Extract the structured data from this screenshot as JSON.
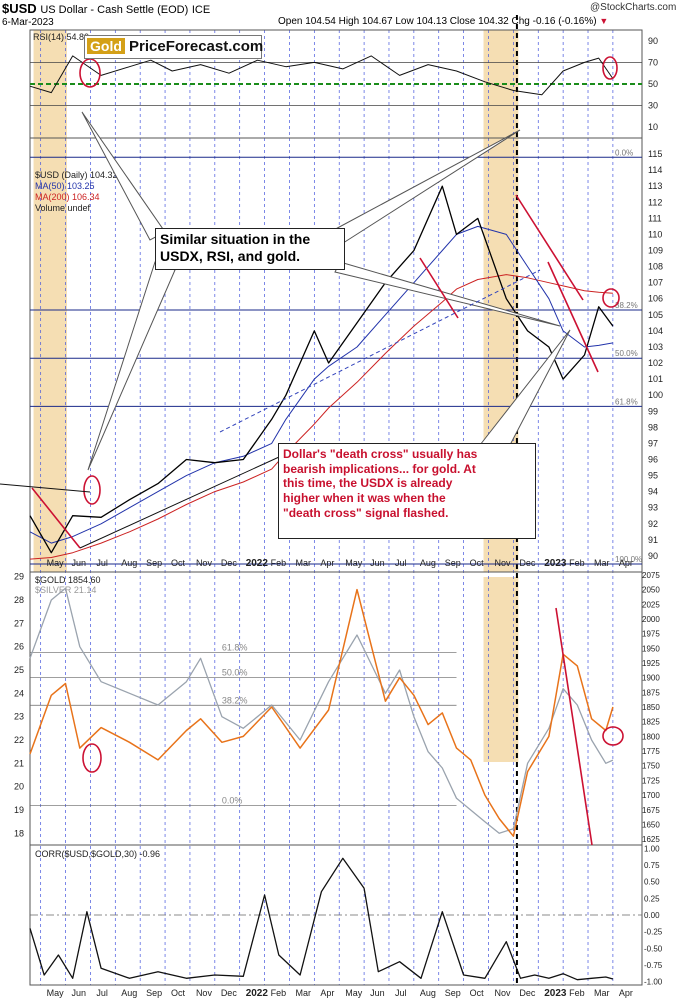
{
  "header": {
    "symbol": "$USD",
    "name": "US Dollar - Cash Settle (EOD)",
    "exchange": "ICE",
    "date": "6-Mar-2023",
    "quote": "Open 104.54  High 104.67  Low 104.13  Close 104.32  Chg -0.16 (-0.16%)",
    "quote_arrow": "▼",
    "credit": "@StockCharts.com"
  },
  "logo": {
    "part1": "Gold",
    "part2": "PriceForecast.com"
  },
  "annotations": {
    "similar": [
      "Similar situation in the",
      "USDX, RSI, and gold."
    ],
    "death_cross": [
      "Dollar's \"death cross\" usually has",
      "bearish implications... for gold. At",
      "this time, the USDX is already",
      "higher when it was when the",
      "\"death cross\" signal flashed."
    ]
  },
  "colors": {
    "gold_series": "#e8731a",
    "silver_series": "#9aa3ae",
    "price": "#000000",
    "ma50": "#2233aa",
    "ma200": "#cc2222",
    "highlight": "#f5deb3",
    "red_annotation": "#cc1133",
    "rsi_mid": "#1a8c1a"
  },
  "chart_data": [
    {
      "type": "line",
      "panel": "rsi",
      "legend": "RSI(14) 54.80",
      "ylim": [
        0,
        100
      ],
      "yticks": [
        10,
        30,
        50,
        70,
        90
      ],
      "ref_lines": [
        30,
        50,
        70
      ],
      "x": [
        0,
        3,
        6,
        10,
        14,
        17,
        20,
        24,
        28,
        32,
        36,
        40,
        44,
        48,
        52,
        56,
        60,
        64,
        68,
        72,
        75,
        78,
        80,
        82
      ],
      "values": [
        48,
        42,
        76,
        58,
        66,
        72,
        62,
        68,
        60,
        72,
        66,
        70,
        64,
        76,
        58,
        68,
        62,
        52,
        44,
        40,
        62,
        70,
        74,
        55
      ]
    },
    {
      "type": "line",
      "panel": "usd",
      "legend": [
        "$USD (Daily) 104.32",
        "MA(50) 103.25",
        "MA(200) 106.34",
        "Volume undef"
      ],
      "ylim": [
        89,
        116
      ],
      "yticks": [
        90,
        91,
        92,
        93,
        94,
        95,
        96,
        97,
        98,
        99,
        100,
        101,
        102,
        103,
        104,
        105,
        106,
        107,
        108,
        109,
        110,
        111,
        112,
        113,
        114,
        115
      ],
      "x": [
        0,
        3,
        6,
        10,
        14,
        18,
        22,
        26,
        30,
        34,
        36,
        40,
        42,
        46,
        50,
        54,
        58,
        60,
        63,
        67,
        70,
        73,
        75,
        78,
        80,
        82
      ],
      "series": [
        {
          "name": "$USD",
          "values": [
            92.5,
            90.2,
            92.5,
            92.4,
            93.5,
            94.5,
            96.0,
            95.8,
            96.0,
            98.5,
            100.0,
            104.0,
            102.0,
            104.5,
            107.0,
            109.0,
            113.0,
            110.0,
            111.0,
            106.0,
            104.0,
            103.0,
            101.0,
            102.5,
            105.5,
            104.3
          ]
        },
        {
          "name": "MA(50)",
          "values": [
            91.5,
            90.8,
            91.2,
            92.0,
            93.0,
            94.0,
            95.0,
            95.8,
            96.2,
            97.0,
            98.5,
            101.0,
            101.8,
            103.0,
            105.0,
            107.0,
            109.0,
            110.0,
            110.5,
            110.0,
            108.0,
            106.0,
            104.0,
            103.0,
            103.1,
            103.25
          ]
        },
        {
          "name": "MA(200)",
          "values": [
            89.8,
            89.9,
            90.2,
            90.8,
            91.5,
            92.3,
            93.2,
            94.0,
            94.6,
            95.4,
            96.4,
            98.2,
            99.2,
            100.8,
            102.6,
            104.3,
            105.8,
            106.6,
            107.2,
            107.5,
            107.3,
            107.0,
            106.8,
            106.5,
            106.4,
            106.34
          ]
        }
      ],
      "fib_levels": [
        {
          "label": "0.0%",
          "value": 114.8
        },
        {
          "label": "38.2%",
          "value": 105.3
        },
        {
          "label": "50.0%",
          "value": 102.3
        },
        {
          "label": "61.8%",
          "value": 99.3
        },
        {
          "label": "100.0%",
          "value": 89.5
        }
      ]
    },
    {
      "type": "line",
      "panel": "gold",
      "legend": [
        "$GOLD 1854.60",
        "$SILVER 21.14"
      ],
      "ylim_gold": [
        1615,
        2080
      ],
      "ylim_silver": [
        17.5,
        29.2
      ],
      "yticks_gold": [
        1625,
        1650,
        1675,
        1700,
        1725,
        1750,
        1775,
        1800,
        1825,
        1850,
        1875,
        1900,
        1925,
        1950,
        1975,
        2000,
        2025,
        2050,
        2075
      ],
      "yticks_silver": [
        18,
        19,
        20,
        21,
        22,
        23,
        24,
        25,
        26,
        27,
        28,
        29
      ],
      "x": [
        0,
        3,
        5,
        7,
        10,
        14,
        18,
        22,
        24,
        27,
        30,
        34,
        38,
        42,
        46,
        50,
        52,
        54,
        56,
        58,
        60,
        62,
        64,
        66,
        68,
        70,
        73,
        75,
        77,
        79,
        81,
        82
      ],
      "series": [
        {
          "name": "$GOLD",
          "values": [
            1770,
            1870,
            1890,
            1780,
            1815,
            1790,
            1760,
            1810,
            1830,
            1790,
            1800,
            1850,
            1780,
            1845,
            2050,
            1860,
            1900,
            1870,
            1820,
            1840,
            1780,
            1760,
            1700,
            1660,
            1630,
            1740,
            1800,
            1940,
            1920,
            1830,
            1810,
            1850
          ]
        },
        {
          "name": "$SILVER",
          "values": [
            25.5,
            28.0,
            28.5,
            26.0,
            24.5,
            24.0,
            23.5,
            24.5,
            25.5,
            23.0,
            22.5,
            23.5,
            22.0,
            24.5,
            26.5,
            24.0,
            25.0,
            23.0,
            21.5,
            20.8,
            19.5,
            19.0,
            18.5,
            18.0,
            18.2,
            21.0,
            22.5,
            24.2,
            23.5,
            22.0,
            21.0,
            21.14
          ]
        }
      ],
      "fib_levels": [
        {
          "label": "61.8%",
          "value": 1943
        },
        {
          "label": "50.0%",
          "value": 1900
        },
        {
          "label": "38.2%",
          "value": 1853
        },
        {
          "label": "0.0%",
          "value": 1682
        }
      ]
    },
    {
      "type": "line",
      "panel": "correlation",
      "legend": "CORR($USD,$GOLD,30) -0.96",
      "ylim": [
        -1.05,
        1.05
      ],
      "yticks": [
        1.0,
        0.75,
        0.5,
        0.25,
        0.0,
        -0.25,
        -0.5,
        -0.75,
        -1.0
      ],
      "x": [
        0,
        2,
        4,
        6,
        8,
        10,
        14,
        18,
        22,
        26,
        30,
        33,
        35,
        38,
        41,
        44,
        47,
        49,
        52,
        55,
        58,
        61,
        64,
        67,
        69,
        71,
        73,
        75,
        77,
        79,
        81,
        82
      ],
      "values": [
        -0.2,
        -0.9,
        -0.6,
        -0.95,
        0.05,
        -0.8,
        -0.95,
        -0.85,
        -0.95,
        -0.9,
        -0.92,
        0.3,
        -0.6,
        -0.9,
        0.35,
        0.85,
        0.4,
        -0.85,
        -0.7,
        -0.95,
        0.05,
        -0.9,
        -0.95,
        -0.4,
        -0.95,
        -0.9,
        -0.95,
        -0.88,
        -0.97,
        -0.95,
        -0.93,
        -0.96
      ]
    },
    {
      "type": "line",
      "panel": "time_axis",
      "tick_labels": [
        "May",
        "Jun",
        "Jul",
        "Aug",
        "Sep",
        "Oct",
        "Nov",
        "Dec",
        "2022",
        "Feb",
        "Mar",
        "Apr",
        "May",
        "Jun",
        "Jul",
        "Aug",
        "Sep",
        "Oct",
        "Nov",
        "Dec",
        "2023",
        "Feb",
        "Mar",
        "Apr"
      ]
    }
  ]
}
